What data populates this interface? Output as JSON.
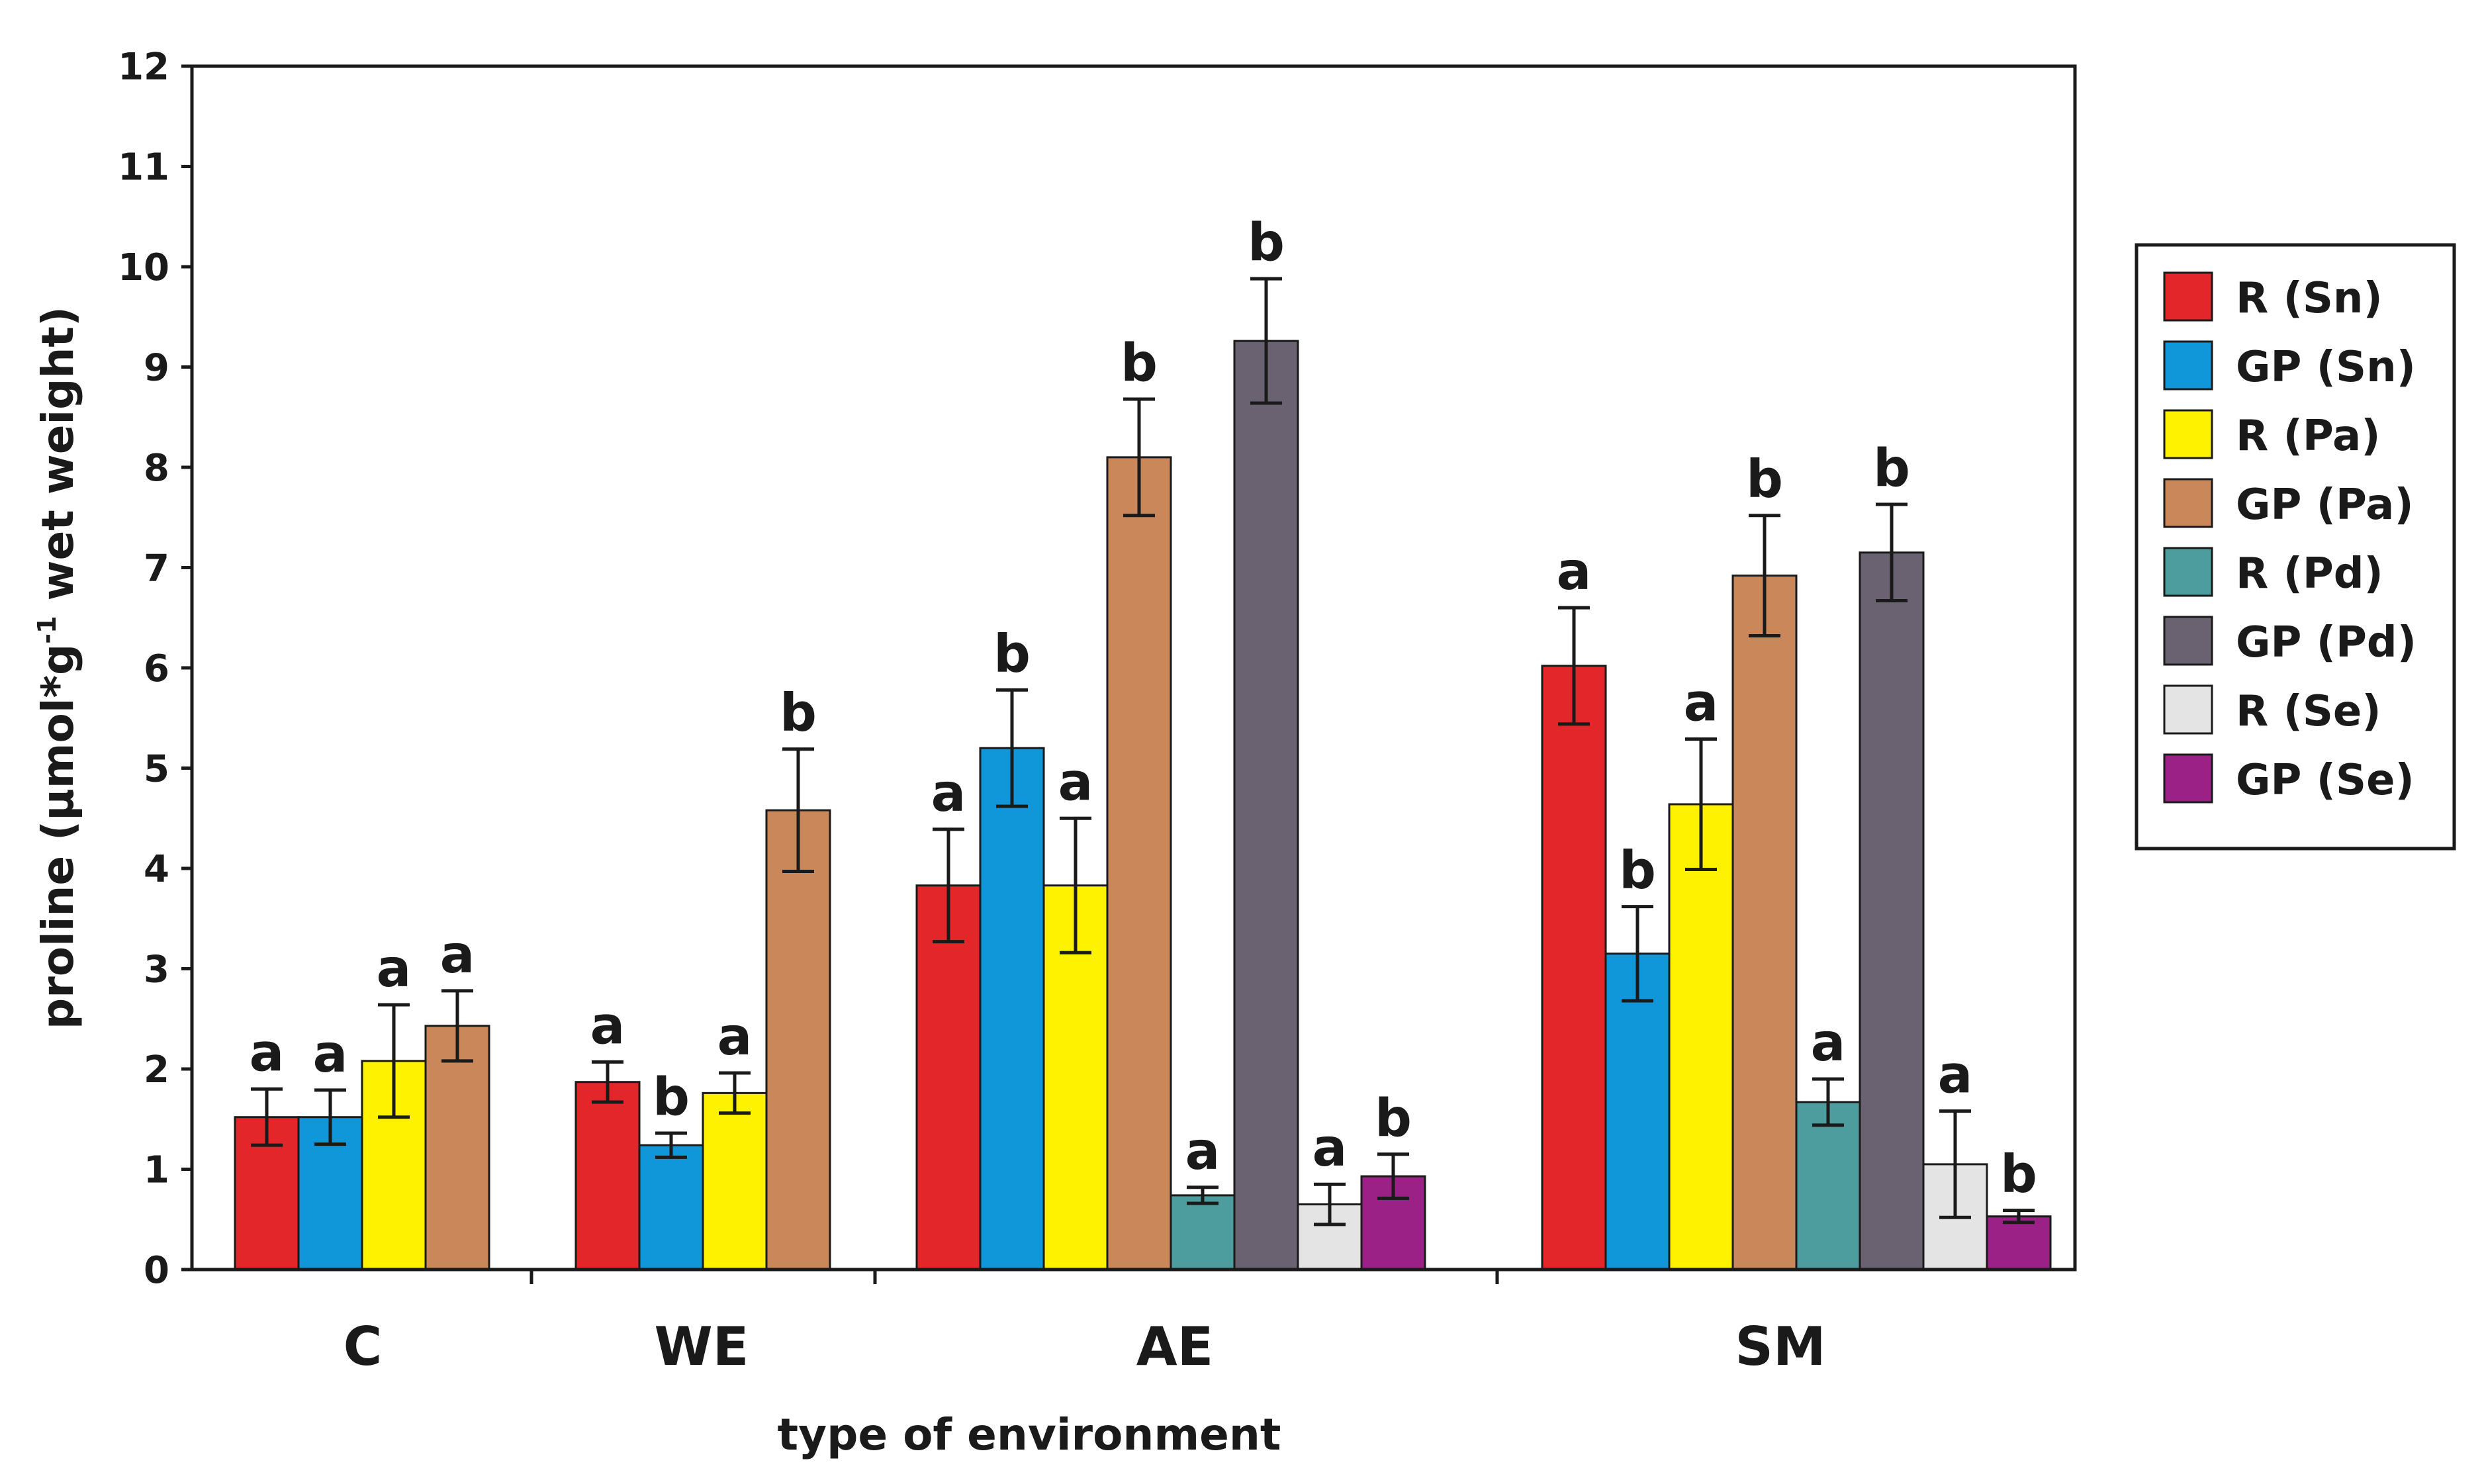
{
  "chart_data": {
    "type": "bar",
    "title": "",
    "xlabel": "type of environment",
    "ylabel": {
      "pre": "proline (µmol*g",
      "sup": "-1",
      "post": " wet weight)"
    },
    "ylim": [
      0,
      12
    ],
    "yticks": [
      0,
      1,
      2,
      3,
      4,
      5,
      6,
      7,
      8,
      9,
      10,
      11,
      12
    ],
    "grid": false,
    "legend_position": "right",
    "categories": [
      "C",
      "WE",
      "AE",
      "SM"
    ],
    "series": [
      {
        "name": "R (Sn)",
        "color": "#e3262a"
      },
      {
        "name": "GP (Sn)",
        "color": "#0f97d9"
      },
      {
        "name": "R (Pa)",
        "color": "#fff200"
      },
      {
        "name": "GP (Pa)",
        "color": "#c9875a"
      },
      {
        "name": "R (Pd)",
        "color": "#4e9d9e"
      },
      {
        "name": "GP (Pd)",
        "color": "#6a6270"
      },
      {
        "name": "R (Se)",
        "color": "#e4e4e4"
      },
      {
        "name": "GP (Se)",
        "color": "#9b2186"
      }
    ],
    "groups": [
      {
        "category": "C",
        "bars": [
          {
            "series": "R (Sn)",
            "value": 1.52,
            "error": 0.28,
            "sig": "a"
          },
          {
            "series": "GP (Sn)",
            "value": 1.52,
            "error": 0.27,
            "sig": "a"
          },
          {
            "series": "R (Pa)",
            "value": 2.08,
            "error": 0.56,
            "sig": "a"
          },
          {
            "series": "GP (Pa)",
            "value": 2.43,
            "error": 0.35,
            "sig": "a"
          }
        ]
      },
      {
        "category": "WE",
        "bars": [
          {
            "series": "R (Sn)",
            "value": 1.87,
            "error": 0.2,
            "sig": "a"
          },
          {
            "series": "GP (Sn)",
            "value": 1.24,
            "error": 0.12,
            "sig": "b"
          },
          {
            "series": "R (Pa)",
            "value": 1.76,
            "error": 0.2,
            "sig": "a"
          },
          {
            "series": "GP (Pa)",
            "value": 4.58,
            "error": 0.61,
            "sig": "b"
          }
        ]
      },
      {
        "category": "AE",
        "bars": [
          {
            "series": "R (Sn)",
            "value": 3.83,
            "error": 0.56,
            "sig": "a"
          },
          {
            "series": "GP (Sn)",
            "value": 5.2,
            "error": 0.58,
            "sig": "b"
          },
          {
            "series": "R (Pa)",
            "value": 3.83,
            "error": 0.67,
            "sig": "a"
          },
          {
            "series": "GP (Pa)",
            "value": 8.1,
            "error": 0.58,
            "sig": "b"
          },
          {
            "series": "R (Pd)",
            "value": 0.74,
            "error": 0.08,
            "sig": "a"
          },
          {
            "series": "GP (Pd)",
            "value": 9.26,
            "error": 0.62,
            "sig": "b"
          },
          {
            "series": "R (Se)",
            "value": 0.65,
            "error": 0.2,
            "sig": "a"
          },
          {
            "series": "GP (Se)",
            "value": 0.93,
            "error": 0.22,
            "sig": "b"
          }
        ]
      },
      {
        "category": "SM",
        "bars": [
          {
            "series": "R (Sn)",
            "value": 6.02,
            "error": 0.58,
            "sig": "a"
          },
          {
            "series": "GP (Sn)",
            "value": 3.15,
            "error": 0.47,
            "sig": "b"
          },
          {
            "series": "R (Pa)",
            "value": 4.64,
            "error": 0.65,
            "sig": "a"
          },
          {
            "series": "GP (Pa)",
            "value": 6.92,
            "error": 0.6,
            "sig": "b"
          },
          {
            "series": "R (Pd)",
            "value": 1.67,
            "error": 0.23,
            "sig": "a"
          },
          {
            "series": "GP (Pd)",
            "value": 7.15,
            "error": 0.48,
            "sig": "b"
          },
          {
            "series": "R (Se)",
            "value": 1.05,
            "error": 0.53,
            "sig": "a"
          },
          {
            "series": "GP (Se)",
            "value": 0.53,
            "error": 0.06,
            "sig": "b"
          }
        ]
      }
    ]
  }
}
